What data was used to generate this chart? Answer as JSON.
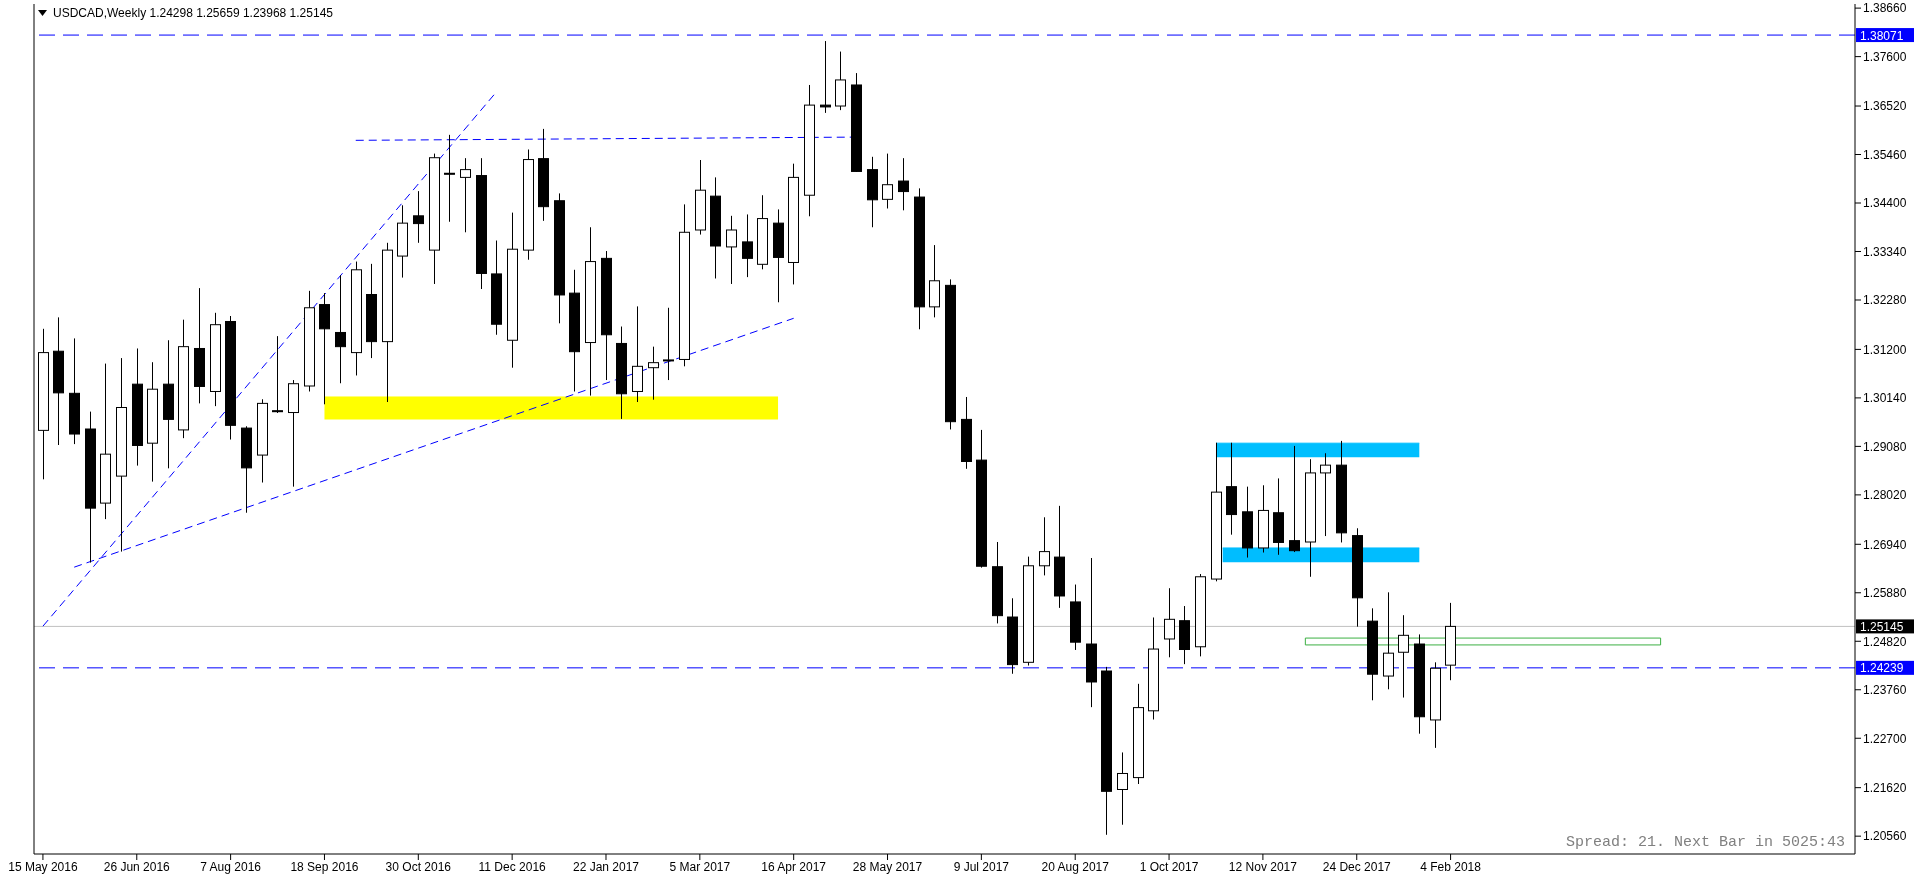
{
  "chart_data": {
    "type": "candlestick",
    "title": "USDCAD,Weekly 1.24298 1.25659 1.23968 1.25145",
    "color": "#000000",
    "x": [
      "2016-05-15",
      "2016-05-22",
      "2016-05-29",
      "2016-06-05",
      "2016-06-12",
      "2016-06-19",
      "2016-06-26",
      "2016-07-03",
      "2016-07-10",
      "2016-07-17",
      "2016-07-24",
      "2016-07-31",
      "2016-08-07",
      "2016-08-14",
      "2016-08-21",
      "2016-08-28",
      "2016-09-04",
      "2016-09-11",
      "2016-09-18",
      "2016-09-25",
      "2016-10-02",
      "2016-10-09",
      "2016-10-16",
      "2016-10-23",
      "2016-10-30",
      "2016-11-06",
      "2016-11-13",
      "2016-11-20",
      "2016-11-27",
      "2016-12-04",
      "2016-12-11",
      "2016-12-18",
      "2016-12-25",
      "2017-01-01",
      "2017-01-08",
      "2017-01-15",
      "2017-01-22",
      "2017-01-29",
      "2017-02-05",
      "2017-02-12",
      "2017-02-19",
      "2017-02-26",
      "2017-03-05",
      "2017-03-12",
      "2017-03-19",
      "2017-03-26",
      "2017-04-02",
      "2017-04-09",
      "2017-04-16",
      "2017-04-23",
      "2017-04-30",
      "2017-05-07",
      "2017-05-14",
      "2017-05-21",
      "2017-05-28",
      "2017-06-04",
      "2017-06-11",
      "2017-06-18",
      "2017-06-25",
      "2017-07-02",
      "2017-07-09",
      "2017-07-16",
      "2017-07-23",
      "2017-07-30",
      "2017-08-06",
      "2017-08-13",
      "2017-08-20",
      "2017-08-27",
      "2017-09-03",
      "2017-09-10",
      "2017-09-17",
      "2017-09-24",
      "2017-10-01",
      "2017-10-08",
      "2017-10-15",
      "2017-10-22",
      "2017-10-29",
      "2017-11-05",
      "2017-11-12",
      "2017-11-19",
      "2017-11-26",
      "2017-12-03",
      "2017-12-10",
      "2017-12-17",
      "2017-12-24",
      "2017-12-31",
      "2018-01-07",
      "2018-01-14",
      "2018-01-21",
      "2018-01-28",
      "2018-02-04"
    ],
    "ohlc": [
      [
        1.2943,
        1.3165,
        1.2836,
        1.3113
      ],
      [
        1.3116,
        1.319,
        1.2911,
        1.3025
      ],
      [
        1.3024,
        1.3144,
        1.2913,
        1.2935
      ],
      [
        1.2946,
        1.2984,
        1.2654,
        1.2773
      ],
      [
        1.2784,
        1.3089,
        1.2749,
        1.2891
      ],
      [
        1.2843,
        1.3101,
        1.2678,
        1.2993
      ],
      [
        1.3044,
        1.3122,
        1.2866,
        1.291
      ],
      [
        1.2915,
        1.3092,
        1.2831,
        1.3033
      ],
      [
        1.3044,
        1.314,
        1.286,
        1.2967
      ],
      [
        1.2944,
        1.3185,
        1.2926,
        1.3126
      ],
      [
        1.3122,
        1.3254,
        1.3002,
        1.3039
      ],
      [
        1.3028,
        1.32,
        1.2996,
        1.3174
      ],
      [
        1.3181,
        1.3193,
        1.2923,
        1.2954
      ],
      [
        1.2948,
        1.2952,
        1.2763,
        1.2861
      ],
      [
        1.2889,
        1.3011,
        1.2829,
        1.3002
      ],
      [
        1.2986,
        1.3149,
        1.2981,
        1.2985
      ],
      [
        1.2982,
        1.3053,
        1.282,
        1.3045
      ],
      [
        1.304,
        1.3248,
        1.3028,
        1.3211
      ],
      [
        1.3218,
        1.3243,
        1.3,
        1.3165
      ],
      [
        1.3157,
        1.3282,
        1.3046,
        1.3126
      ],
      [
        1.3113,
        1.3312,
        1.3063,
        1.3294
      ],
      [
        1.324,
        1.3307,
        1.3101,
        1.3137
      ],
      [
        1.3137,
        1.3353,
        1.3005,
        1.3337
      ],
      [
        1.3324,
        1.3435,
        1.3277,
        1.3396
      ],
      [
        1.3412,
        1.3466,
        1.3353,
        1.3395
      ],
      [
        1.3337,
        1.3548,
        1.3263,
        1.3539
      ],
      [
        1.3505,
        1.3589,
        1.3399,
        1.3503
      ],
      [
        1.3496,
        1.3538,
        1.3376,
        1.3513
      ],
      [
        1.35,
        1.3538,
        1.3252,
        1.3286
      ],
      [
        1.3285,
        1.3358,
        1.3152,
        1.3175
      ],
      [
        1.314,
        1.3419,
        1.308,
        1.3339
      ],
      [
        1.3337,
        1.3557,
        1.3316,
        1.3535
      ],
      [
        1.3537,
        1.3602,
        1.3401,
        1.3432
      ],
      [
        1.3445,
        1.3461,
        1.3177,
        1.3239
      ],
      [
        1.3243,
        1.3294,
        1.3028,
        1.3115
      ],
      [
        1.3135,
        1.3387,
        1.3019,
        1.3312
      ],
      [
        1.3319,
        1.3335,
        1.3053,
        1.3152
      ],
      [
        1.3133,
        1.317,
        1.2968,
        1.3023
      ],
      [
        1.3028,
        1.3214,
        1.3005,
        1.3083
      ],
      [
        1.308,
        1.3126,
        1.301,
        1.3091
      ],
      [
        1.3095,
        1.3211,
        1.3053,
        1.3097
      ],
      [
        1.3098,
        1.3437,
        1.3083,
        1.3376
      ],
      [
        1.3381,
        1.3534,
        1.3371,
        1.3468
      ],
      [
        1.3455,
        1.3496,
        1.3275,
        1.3346
      ],
      [
        1.3344,
        1.3412,
        1.3263,
        1.3381
      ],
      [
        1.3355,
        1.3415,
        1.3278,
        1.3319
      ],
      [
        1.3306,
        1.3457,
        1.3295,
        1.3406
      ],
      [
        1.3396,
        1.3426,
        1.3223,
        1.3321
      ],
      [
        1.331,
        1.3526,
        1.3262,
        1.3496
      ],
      [
        1.3457,
        1.3698,
        1.3411,
        1.3654
      ],
      [
        1.3654,
        1.3794,
        1.3637,
        1.365
      ],
      [
        1.3652,
        1.3771,
        1.3643,
        1.3709
      ],
      [
        1.3698,
        1.3724,
        1.3508,
        1.3509
      ],
      [
        1.3513,
        1.3541,
        1.3387,
        1.3447
      ],
      [
        1.3448,
        1.3548,
        1.3428,
        1.348
      ],
      [
        1.3488,
        1.3538,
        1.3424,
        1.3465
      ],
      [
        1.3453,
        1.3472,
        1.3164,
        1.3213
      ],
      [
        1.3213,
        1.3348,
        1.319,
        1.327
      ],
      [
        1.326,
        1.3273,
        1.2945,
        1.2962
      ],
      [
        1.2967,
        1.3016,
        1.2859,
        1.2875
      ],
      [
        1.2878,
        1.2944,
        1.2643,
        1.2646
      ],
      [
        1.2645,
        1.2699,
        1.2521,
        1.2538
      ],
      [
        1.2535,
        1.2576,
        1.2411,
        1.2431
      ],
      [
        1.2436,
        1.2667,
        1.2429,
        1.2647
      ],
      [
        1.2647,
        1.2753,
        1.2626,
        1.2678
      ],
      [
        1.2666,
        1.2778,
        1.2555,
        1.2581
      ],
      [
        1.2568,
        1.2606,
        1.2463,
        1.248
      ],
      [
        1.2476,
        1.2664,
        1.2338,
        1.2393
      ],
      [
        1.2417,
        1.2426,
        1.2059,
        1.2154
      ],
      [
        1.2158,
        1.2239,
        1.2081,
        1.2193
      ],
      [
        1.2184,
        1.2389,
        1.217,
        1.2337
      ],
      [
        1.233,
        1.2534,
        1.2311,
        1.2465
      ],
      [
        1.2487,
        1.2598,
        1.2447,
        1.253
      ],
      [
        1.2527,
        1.2559,
        1.2432,
        1.2464
      ],
      [
        1.247,
        1.2629,
        1.2449,
        1.2623
      ],
      [
        1.2618,
        1.2916,
        1.2613,
        1.2808
      ],
      [
        1.282,
        1.2916,
        1.2715,
        1.2759
      ],
      [
        1.2765,
        1.282,
        1.2665,
        1.2686
      ],
      [
        1.2686,
        1.2823,
        1.2676,
        1.2768
      ],
      [
        1.2763,
        1.2838,
        1.2671,
        1.2698
      ],
      [
        1.2702,
        1.2909,
        1.2677,
        1.268
      ],
      [
        1.2699,
        1.288,
        1.2623,
        1.285
      ],
      [
        1.285,
        1.2893,
        1.2712,
        1.2867
      ],
      [
        1.2867,
        1.292,
        1.2698,
        1.2719
      ],
      [
        1.2713,
        1.2729,
        1.2514,
        1.2577
      ],
      [
        1.2526,
        1.2554,
        1.2353,
        1.241
      ],
      [
        1.2406,
        1.2589,
        1.2377,
        1.2456
      ],
      [
        1.2458,
        1.2539,
        1.2359,
        1.2495
      ],
      [
        1.2476,
        1.2497,
        1.228,
        1.2317
      ],
      [
        1.231,
        1.2436,
        1.2249,
        1.2423
      ],
      [
        1.24298,
        1.25659,
        1.23968,
        1.25145
      ]
    ],
    "xlim": [
      "2016-05-11",
      "2018-08-04"
    ],
    "xticks": [
      {
        "value": "2016-05-15",
        "label": "15 May 2016"
      },
      {
        "value": "2016-06-26",
        "label": "26 Jun 2016"
      },
      {
        "value": "2016-08-07",
        "label": "7 Aug 2016"
      },
      {
        "value": "2016-09-18",
        "label": "18 Sep 2016"
      },
      {
        "value": "2016-10-30",
        "label": "30 Oct 2016"
      },
      {
        "value": "2016-12-11",
        "label": "11 Dec 2016"
      },
      {
        "value": "2017-01-22",
        "label": "22 Jan 2017"
      },
      {
        "value": "2017-03-05",
        "label": "5 Mar 2017"
      },
      {
        "value": "2017-04-16",
        "label": "16 Apr 2017"
      },
      {
        "value": "2017-05-28",
        "label": "28 May 2017"
      },
      {
        "value": "2017-07-09",
        "label": "9 Jul 2017"
      },
      {
        "value": "2017-08-20",
        "label": "20 Aug 2017"
      },
      {
        "value": "2017-10-01",
        "label": "1 Oct 2017"
      },
      {
        "value": "2017-11-12",
        "label": "12 Nov 2017"
      },
      {
        "value": "2017-12-24",
        "label": "24 Dec 2017"
      },
      {
        "value": "2018-02-04",
        "label": "4 Feb 2018"
      }
    ],
    "ylim": [
      1.2017,
      1.3875
    ],
    "yticks": [
      {
        "value": 1.2056,
        "label": "1.20560"
      },
      {
        "value": 1.2162,
        "label": "1.21620"
      },
      {
        "value": 1.227,
        "label": "1.22700"
      },
      {
        "value": 1.2376,
        "label": "1.23760"
      },
      {
        "value": 1.2482,
        "label": "1.24820"
      },
      {
        "value": 1.2588,
        "label": "1.25880"
      },
      {
        "value": 1.2694,
        "label": "1.26940"
      },
      {
        "value": 1.2802,
        "label": "1.28020"
      },
      {
        "value": 1.2908,
        "label": "1.29080"
      },
      {
        "value": 1.3014,
        "label": "1.30140"
      },
      {
        "value": 1.312,
        "label": "1.31200"
      },
      {
        "value": 1.3228,
        "label": "1.32280"
      },
      {
        "value": 1.3334,
        "label": "1.33340"
      },
      {
        "value": 1.344,
        "label": "1.34400"
      },
      {
        "value": 1.3546,
        "label": "1.35460"
      },
      {
        "value": 1.3652,
        "label": "1.36520"
      },
      {
        "value": 1.376,
        "label": "1.37600"
      },
      {
        "value": 1.3866,
        "label": "1.38660"
      }
    ],
    "series": [
      {
        "type": "line",
        "x": [
          "2016-09-18",
          "2017-04-09"
        ],
        "values": [
          1.3016,
          1.3016
        ],
        "lower": [
          1.2967,
          1.2967
        ],
        "upper": [
          1.3016,
          1.3016
        ],
        "color": "#ffff00"
      },
      {
        "type": "line",
        "x": [
          "2017-10-22",
          "2018-01-21"
        ],
        "values": [
          1.2915,
          1.2915
        ],
        "lower": [
          1.2884,
          1.2884
        ],
        "upper": [
          1.2915,
          1.2915
        ],
        "color": "#00bfff"
      },
      {
        "type": "line",
        "x": [
          "2017-10-25",
          "2018-01-21"
        ],
        "values": [
          1.2686,
          1.2686
        ],
        "lower": [
          1.2655,
          1.2655
        ],
        "upper": [
          1.2686,
          1.2686
        ],
        "color": "#00bdff"
      },
      {
        "type": "line",
        "x": [
          "2016-05-15",
          "2016-12-04"
        ],
        "values": [
          1.2515,
          1.3683
        ],
        "color": "#0000ff",
        "line_style": "dashed"
      },
      {
        "type": "line",
        "x": [
          "2016-05-29",
          "2017-04-16"
        ],
        "values": [
          1.2644,
          1.3188
        ],
        "color": "#0000ff",
        "line_style": "dashed"
      },
      {
        "type": "line",
        "x": [
          "2016-10-02",
          "2017-05-12"
        ],
        "values": [
          1.3577,
          1.3584
        ],
        "color": "#0000ff",
        "line_style": "dashed"
      },
      {
        "type": "line",
        "x": [
          "2017-12-01",
          "2017-12-01",
          "2018-05-09",
          "2018-05-09"
        ],
        "values": [
          1.2474,
          1.2489,
          1.2489,
          1.2474
        ],
        "color": "#3cb043"
      },
      {
        "type": "line",
        "x": [
          "2017-12-01",
          "2018-05-09"
        ],
        "values": [
          1.2474,
          1.2474
        ],
        "color": "#3cb043"
      }
    ],
    "ref_lines": [
      {
        "axis": "y",
        "value": 1.38071,
        "label": "1.38071",
        "color": "#0000ff",
        "line_style": "dashed"
      },
      {
        "axis": "y",
        "value": 1.25145,
        "label": "1.25145",
        "color": "#c0c0c0",
        "line_style": "solid"
      },
      {
        "axis": "y",
        "value": 1.24239,
        "label": "1.24239",
        "color": "#0000ff",
        "line_style": "dashed"
      }
    ],
    "annotations": [
      "Spread: 21. Next Bar in 5025:43"
    ]
  }
}
